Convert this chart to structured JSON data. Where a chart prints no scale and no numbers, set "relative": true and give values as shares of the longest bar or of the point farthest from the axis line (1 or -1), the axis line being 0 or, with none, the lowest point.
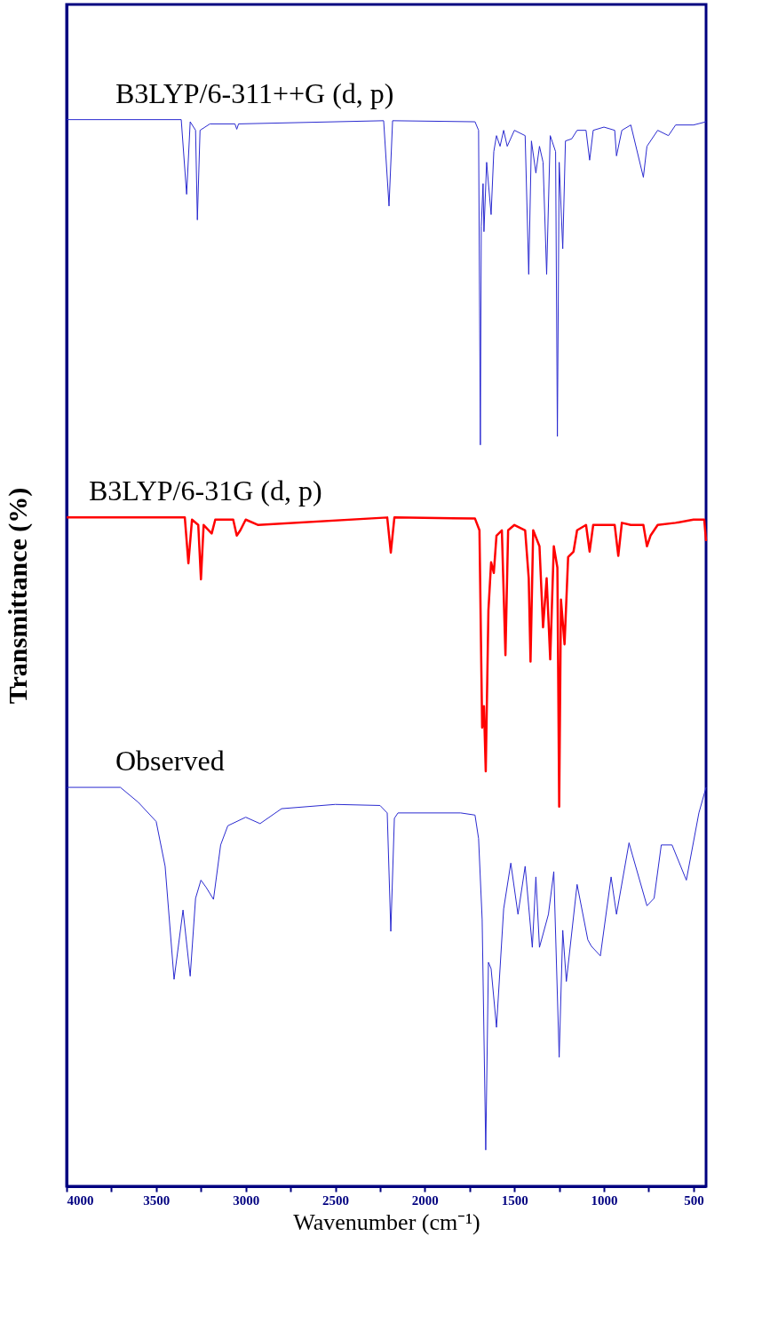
{
  "chart_data": {
    "type": "line",
    "relative": true,
    "xlabel": "Wavenumber (cm⁻¹)",
    "ylabel": "Transmittance (%)",
    "xlim": [
      4000,
      430
    ],
    "xticks": [
      4000,
      {
        "value": 3750,
        "label": null
      },
      3500,
      {
        "value": 3250,
        "label": null
      },
      3000,
      {
        "value": 2750,
        "label": null
      },
      2500,
      {
        "value": 2250,
        "label": null
      },
      2000,
      {
        "value": 1750,
        "label": null
      },
      1500,
      {
        "value": 1250,
        "label": null
      },
      1000,
      {
        "value": 750,
        "label": null
      },
      500
    ],
    "legend": false,
    "grid": false,
    "series": [
      {
        "name": "B3LYP/6-311++G (d, p)",
        "color": "#2a2ad0",
        "x": [
          4000,
          3360,
          3330,
          3310,
          3280,
          3270,
          3255,
          3200,
          3060,
          3050,
          3040,
          2230,
          2200,
          2180,
          1720,
          1700,
          1690,
          1685,
          1675,
          1670,
          1655,
          1630,
          1615,
          1600,
          1580,
          1560,
          1540,
          1500,
          1440,
          1420,
          1405,
          1380,
          1360,
          1340,
          1320,
          1300,
          1270,
          1260,
          1250,
          1230,
          1215,
          1180,
          1150,
          1100,
          1080,
          1060,
          1000,
          940,
          930,
          900,
          850,
          780,
          760,
          700,
          640,
          600,
          500,
          430
        ],
        "values": [
          1.0,
          1.0,
          0.93,
          0.998,
          0.99,
          0.906,
          0.99,
          0.996,
          0.996,
          0.991,
          0.996,
          0.999,
          0.919,
          0.999,
          0.998,
          0.99,
          0.695,
          0.9,
          0.94,
          0.895,
          0.96,
          0.911,
          0.97,
          0.985,
          0.975,
          0.99,
          0.975,
          0.99,
          0.985,
          0.855,
          0.98,
          0.95,
          0.975,
          0.96,
          0.855,
          0.985,
          0.97,
          0.703,
          0.96,
          0.879,
          0.98,
          0.982,
          0.99,
          0.99,
          0.962,
          0.99,
          0.993,
          0.99,
          0.966,
          0.99,
          0.995,
          0.946,
          0.975,
          0.99,
          0.985,
          0.995,
          0.995,
          0.998
        ]
      },
      {
        "name": "B3LYP/6-31G (d, p)",
        "color": "#ff0000",
        "x": [
          4000,
          3340,
          3320,
          3300,
          3265,
          3250,
          3235,
          3190,
          3170,
          3070,
          3050,
          3030,
          3000,
          2930,
          2210,
          2190,
          2170,
          1720,
          1695,
          1680,
          1670,
          1660,
          1645,
          1630,
          1615,
          1600,
          1570,
          1550,
          1535,
          1500,
          1440,
          1420,
          1410,
          1395,
          1360,
          1340,
          1320,
          1300,
          1280,
          1260,
          1250,
          1240,
          1220,
          1200,
          1170,
          1150,
          1100,
          1080,
          1060,
          1000,
          940,
          920,
          900,
          850,
          780,
          760,
          740,
          700,
          600,
          500,
          440,
          430
        ],
        "values": [
          0.627,
          0.627,
          0.584,
          0.625,
          0.62,
          0.569,
          0.62,
          0.612,
          0.625,
          0.625,
          0.61,
          0.615,
          0.625,
          0.62,
          0.627,
          0.594,
          0.627,
          0.626,
          0.615,
          0.43,
          0.45,
          0.389,
          0.54,
          0.585,
          0.575,
          0.61,
          0.615,
          0.498,
          0.615,
          0.62,
          0.615,
          0.57,
          0.492,
          0.615,
          0.6,
          0.524,
          0.57,
          0.494,
          0.6,
          0.58,
          0.356,
          0.55,
          0.508,
          0.59,
          0.595,
          0.615,
          0.62,
          0.595,
          0.62,
          0.62,
          0.62,
          0.591,
          0.622,
          0.62,
          0.62,
          0.6,
          0.61,
          0.62,
          0.622,
          0.625,
          0.625,
          0.605
        ]
      },
      {
        "name": "Observed",
        "color": "#2a2ad0",
        "x": [
          4000,
          3700,
          3600,
          3500,
          3450,
          3400,
          3350,
          3310,
          3280,
          3250,
          3220,
          3180,
          3140,
          3100,
          3000,
          2920,
          2800,
          2500,
          2250,
          2210,
          2190,
          2170,
          2150,
          1800,
          1720,
          1700,
          1680,
          1660,
          1645,
          1630,
          1600,
          1560,
          1520,
          1480,
          1440,
          1400,
          1380,
          1360,
          1310,
          1280,
          1250,
          1230,
          1210,
          1150,
          1090,
          1070,
          1020,
          960,
          930,
          860,
          840,
          760,
          720,
          680,
          620,
          540,
          470,
          430
        ],
        "values": [
          0.374,
          0.374,
          0.36,
          0.342,
          0.3,
          0.194,
          0.259,
          0.197,
          0.27,
          0.287,
          0.28,
          0.269,
          0.32,
          0.338,
          0.346,
          0.34,
          0.354,
          0.358,
          0.357,
          0.35,
          0.239,
          0.345,
          0.35,
          0.35,
          0.348,
          0.326,
          0.25,
          0.034,
          0.21,
          0.204,
          0.149,
          0.26,
          0.303,
          0.255,
          0.3,
          0.224,
          0.29,
          0.224,
          0.255,
          0.295,
          0.121,
          0.24,
          0.192,
          0.283,
          0.231,
          0.225,
          0.216,
          0.29,
          0.255,
          0.322,
          0.31,
          0.263,
          0.27,
          0.32,
          0.32,
          0.287,
          0.35,
          0.374
        ]
      }
    ]
  }
}
